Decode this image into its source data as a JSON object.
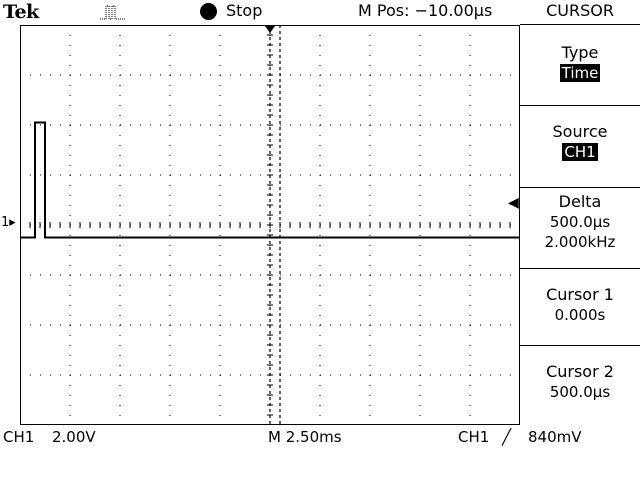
{
  "header": {
    "brand": "Tek",
    "acquisition_icon": "pulse-trigger-icon",
    "run_state": "Stop",
    "position": "M Pos: −10.00µs"
  },
  "menu": {
    "title": "CURSOR",
    "items": [
      {
        "label": "Type",
        "value": "Time",
        "highlighted": true
      },
      {
        "label": "Source",
        "value": "CH1",
        "highlighted": true
      },
      {
        "label": "Delta",
        "value": "500.0µs",
        "value2": "2.000kHz"
      },
      {
        "label": "Cursor 1",
        "value": "0.000s"
      },
      {
        "label": "Cursor 2",
        "value": "500.0µs"
      }
    ]
  },
  "channel_marker": "1",
  "footer": {
    "channel": "CH1",
    "volts_per_div": "2.00V",
    "timebase": "M 2.50ms",
    "trigger_source": "CH1",
    "trigger_slope": "╱",
    "trigger_level": "840mV"
  },
  "chart_data": {
    "type": "line",
    "grid": true,
    "divisions": {
      "x": 10,
      "y": 8
    },
    "series": [
      {
        "x_div": [
          0,
          0.3,
          0.3,
          0.5,
          0.5,
          10
        ],
        "y_div": [
          0,
          0,
          2.3,
          2.3,
          0,
          0
        ]
      }
    ],
    "cursors_time_div": [
      5.0,
      5.2
    ]
  },
  "colors": {
    "background": "#ffffff",
    "trace": "#000000"
  }
}
